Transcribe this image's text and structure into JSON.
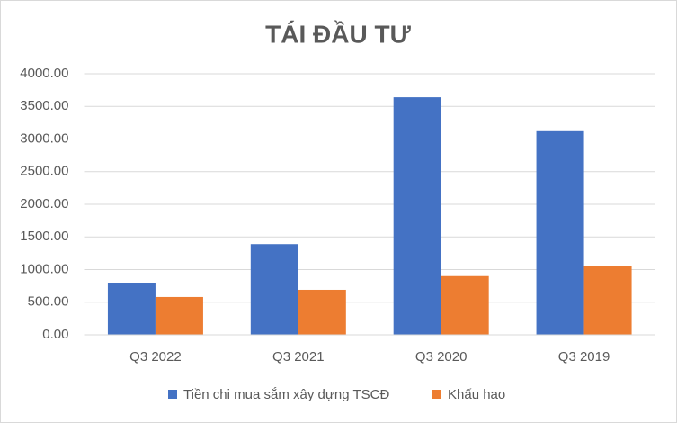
{
  "chart_data": {
    "type": "bar",
    "title": "TÁI ĐẦU TƯ",
    "categories": [
      "Q3 2022",
      "Q3 2021",
      "Q3 2020",
      "Q3 2019"
    ],
    "series": [
      {
        "name": "Tiền chi mua sắm xây dựng TSCĐ",
        "color": "#4472c4",
        "values": [
          800,
          1390,
          3640,
          3120
        ]
      },
      {
        "name": "Khấu hao",
        "color": "#ed7d31",
        "values": [
          580,
          690,
          900,
          1060
        ]
      }
    ],
    "ylim": [
      0,
      4000
    ],
    "yticks": [
      {
        "value": 0,
        "label": "0.00"
      },
      {
        "value": 500,
        "label": "500.00"
      },
      {
        "value": 1000,
        "label": "1000.00"
      },
      {
        "value": 1500,
        "label": "1500.00"
      },
      {
        "value": 2000,
        "label": "2000.00"
      },
      {
        "value": 2500,
        "label": "2500.00"
      },
      {
        "value": 3000,
        "label": "3000.00"
      },
      {
        "value": 3500,
        "label": "3500.00"
      },
      {
        "value": 4000,
        "label": "4000.00"
      }
    ],
    "grid": true,
    "legend": "bottom"
  }
}
